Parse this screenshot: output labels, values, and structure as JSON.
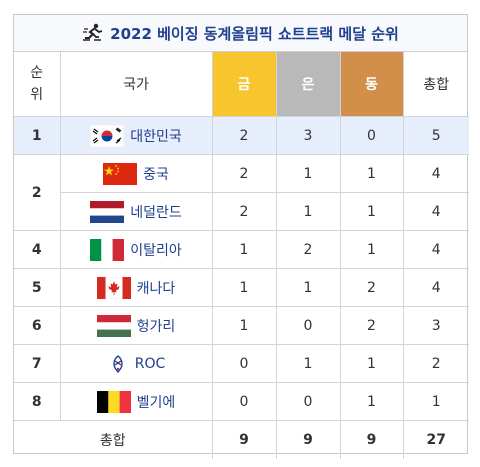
{
  "title": "2022 베이징 동계올림픽 쇼트트랙 메달 순위",
  "headers": {
    "rank": "순위",
    "rank_line1": "순",
    "rank_line2": "위",
    "country": "국가",
    "gold": "금",
    "silver": "은",
    "bronze": "동",
    "total": "총합"
  },
  "rows": [
    {
      "rank": "1",
      "country": "대한민국",
      "flag": "korea-flag-icon",
      "gold": "2",
      "silver": "3",
      "bronze": "0",
      "total": "5"
    },
    {
      "rank": "2",
      "country": "중국",
      "flag": "china-flag-icon",
      "gold": "2",
      "silver": "1",
      "bronze": "1",
      "total": "4"
    },
    {
      "rank": "2",
      "country": "네덜란드",
      "flag": "netherlands-flag-icon",
      "gold": "2",
      "silver": "1",
      "bronze": "1",
      "total": "4"
    },
    {
      "rank": "4",
      "country": "이탈리아",
      "flag": "italy-flag-icon",
      "gold": "1",
      "silver": "2",
      "bronze": "1",
      "total": "4"
    },
    {
      "rank": "5",
      "country": "캐나다",
      "flag": "canada-flag-icon",
      "gold": "1",
      "silver": "1",
      "bronze": "2",
      "total": "4"
    },
    {
      "rank": "6",
      "country": "헝가리",
      "flag": "hungary-flag-icon",
      "gold": "1",
      "silver": "0",
      "bronze": "2",
      "total": "3"
    },
    {
      "rank": "7",
      "country": "ROC",
      "flag": "roc-emblem-icon",
      "gold": "0",
      "silver": "1",
      "bronze": "1",
      "total": "2"
    },
    {
      "rank": "8",
      "country": "벨기에",
      "flag": "belgium-flag-icon",
      "gold": "0",
      "silver": "0",
      "bronze": "1",
      "total": "1"
    }
  ],
  "totals": {
    "label": "총합",
    "gold": "9",
    "silver": "9",
    "bronze": "9",
    "total": "27"
  },
  "colors": {
    "gold": "#f7c62f",
    "silver": "#b9b9b9",
    "bronze": "#d28f4a",
    "highlight": "#e6eefc",
    "title": "#1f3f8f"
  }
}
